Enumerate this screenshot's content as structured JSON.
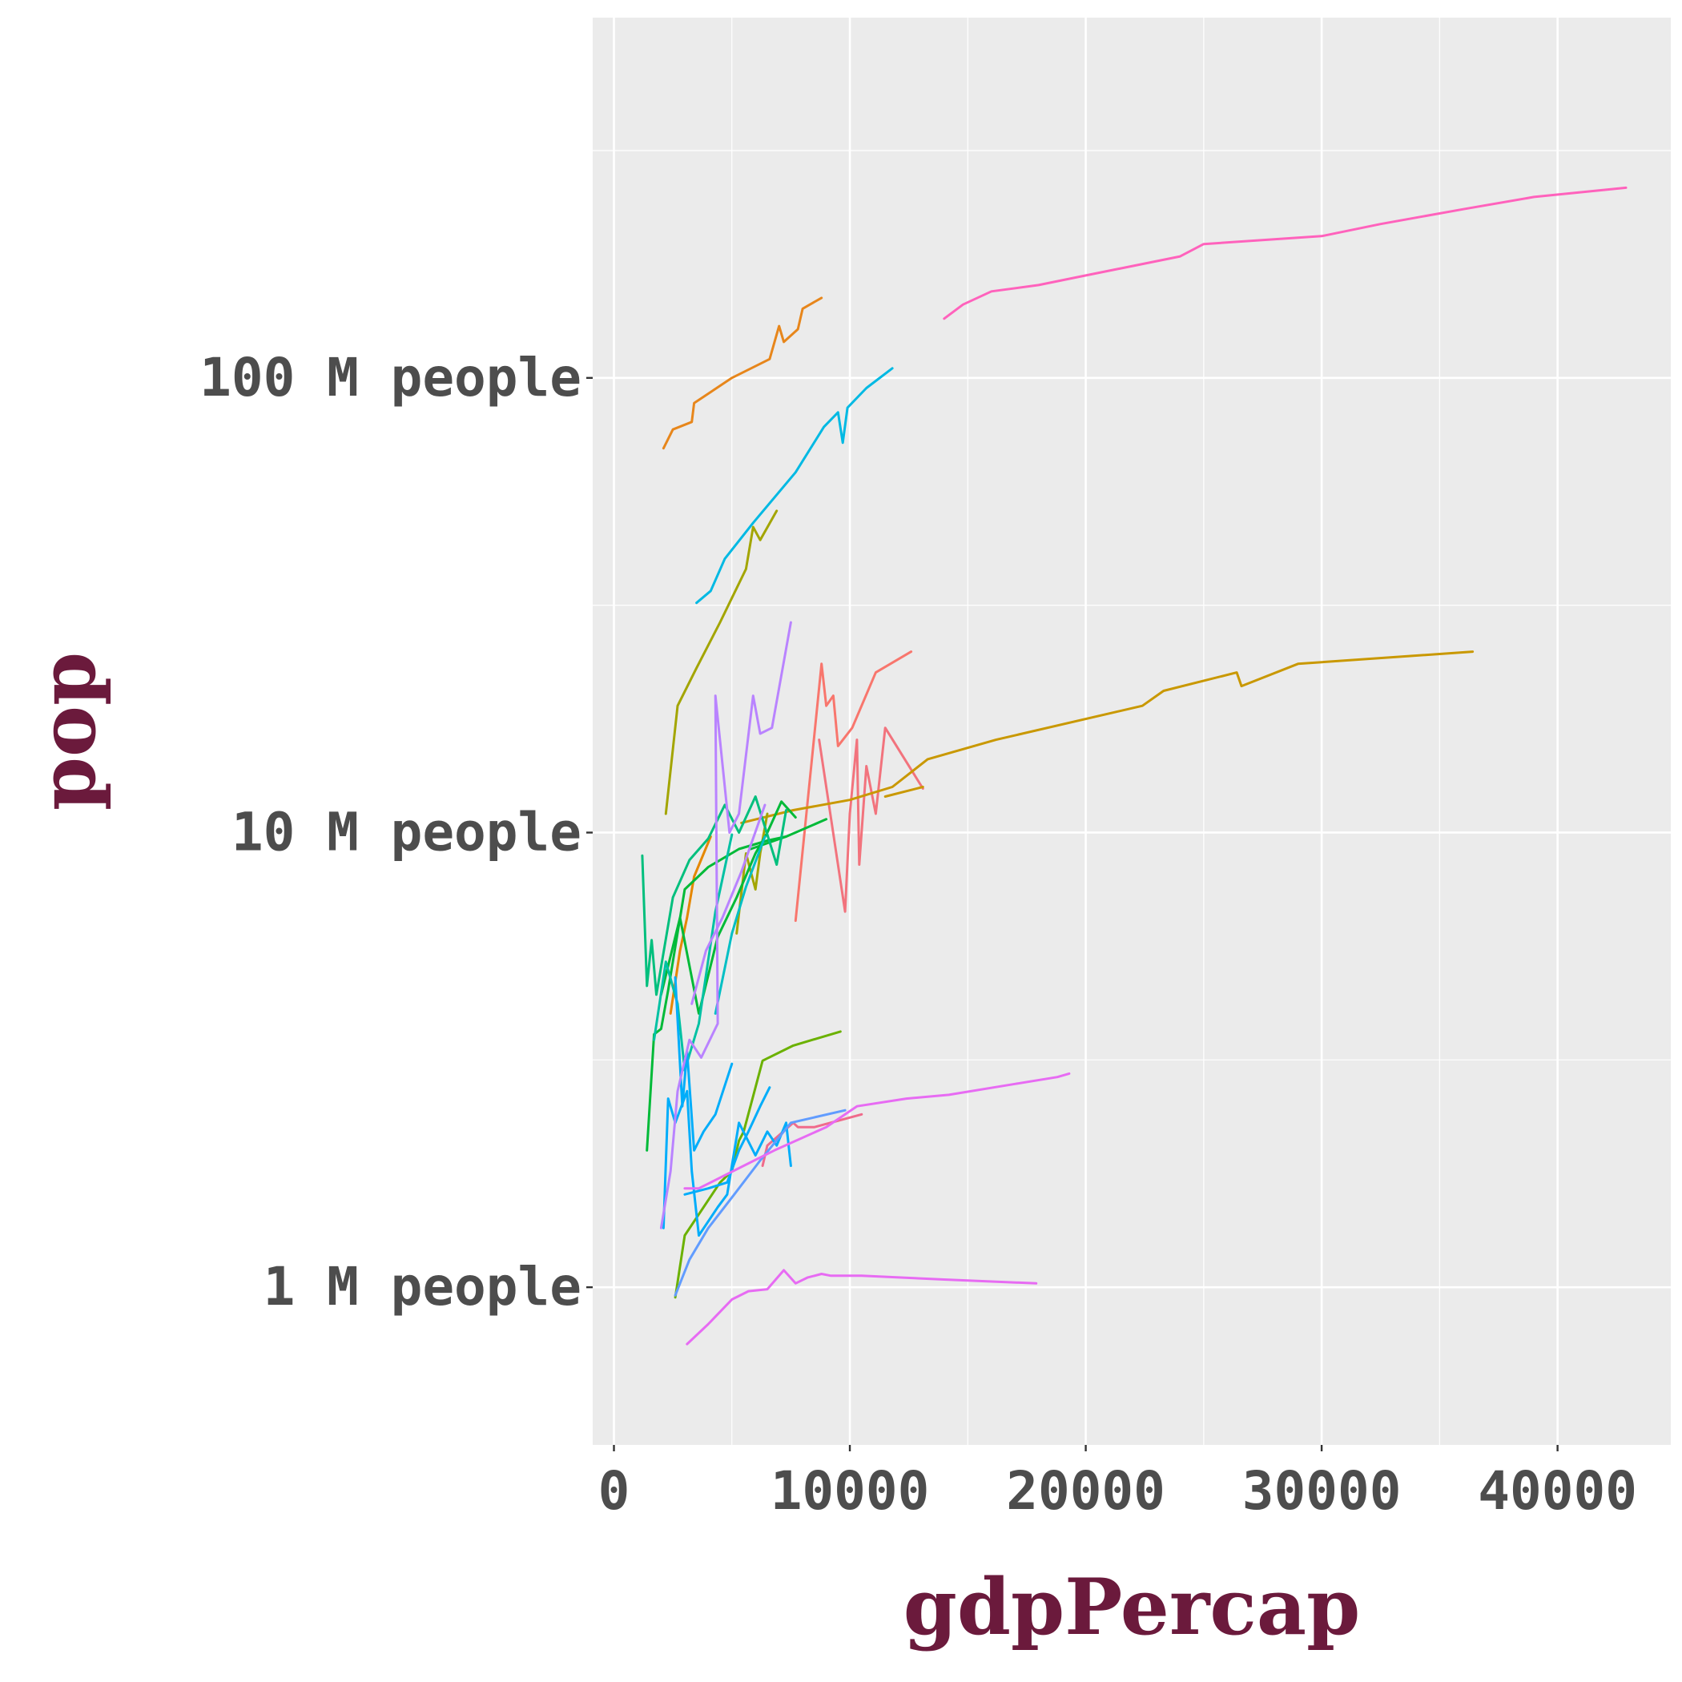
{
  "chart_data": {
    "type": "line",
    "xlabel": "gdpPercap",
    "ylabel": "pop",
    "x_scale": "linear",
    "y_scale": "log10",
    "xlim": [
      -900,
      44800
    ],
    "ylim": [
      450000,
      620000000
    ],
    "x_ticks": [
      {
        "value": 0,
        "label": "0"
      },
      {
        "value": 10000,
        "label": "10000"
      },
      {
        "value": 20000,
        "label": "20000"
      },
      {
        "value": 30000,
        "label": "30000"
      },
      {
        "value": 40000,
        "label": "40000"
      }
    ],
    "y_ticks": [
      {
        "value": 1000000,
        "label": "1 M people"
      },
      {
        "value": 10000000,
        "label": "10 M people"
      },
      {
        "value": 100000000,
        "label": "100 M people"
      }
    ],
    "grid": true,
    "legend": "none",
    "series": [
      {
        "color": "#F8766D",
        "points": [
          [
            7700,
            6400000
          ],
          [
            8800,
            23500000
          ],
          [
            9000,
            19000000
          ],
          [
            9300,
            20000000
          ],
          [
            9500,
            15500000
          ],
          [
            10100,
            17000000
          ],
          [
            11100,
            22500000
          ],
          [
            12600,
            25000000
          ]
        ]
      },
      {
        "color": "#F2737D",
        "points": [
          [
            8700,
            16000000
          ],
          [
            9800,
            6700000
          ],
          [
            10000,
            11000000
          ],
          [
            10300,
            16000000
          ],
          [
            10400,
            8500000
          ],
          [
            10700,
            14000000
          ],
          [
            11100,
            11000000
          ],
          [
            11500,
            17000000
          ],
          [
            13100,
            12500000
          ]
        ]
      },
      {
        "color": "#F06B8B",
        "points": [
          [
            6300,
            1850000
          ],
          [
            6500,
            2050000
          ],
          [
            7600,
            2300000
          ],
          [
            7800,
            2250000
          ],
          [
            8500,
            2250000
          ],
          [
            10500,
            2400000
          ]
        ]
      },
      {
        "color": "#E7861B",
        "points": [
          [
            2100,
            70000000
          ],
          [
            2500,
            77000000
          ],
          [
            3300,
            80000000
          ],
          [
            3400,
            88000000
          ],
          [
            5000,
            100000000
          ],
          [
            6600,
            110000000
          ],
          [
            7000,
            130000000
          ],
          [
            7200,
            120000000
          ],
          [
            7800,
            128000000
          ],
          [
            8000,
            142000000
          ],
          [
            8800,
            150000000
          ]
        ]
      },
      {
        "color": "#E58700",
        "points": [
          [
            2400,
            4000000
          ],
          [
            2800,
            5500000
          ],
          [
            3100,
            6500000
          ],
          [
            3400,
            8000000
          ],
          [
            4100,
            9800000
          ]
        ]
      },
      {
        "color": "#C99800",
        "points": [
          [
            5400,
            10500000
          ],
          [
            7600,
            11200000
          ],
          [
            10000,
            11800000
          ],
          [
            11800,
            12600000
          ],
          [
            13300,
            14500000
          ],
          [
            16200,
            16000000
          ],
          [
            22400,
            19000000
          ],
          [
            23300,
            20500000
          ],
          [
            26400,
            22500000
          ],
          [
            26600,
            21000000
          ],
          [
            29000,
            23500000
          ],
          [
            36400,
            25000000
          ]
        ]
      },
      {
        "color": "#C99800",
        "points": [
          [
            11500,
            12000000
          ],
          [
            13100,
            12600000
          ]
        ]
      },
      {
        "color": "#A3A500",
        "points": [
          [
            2200,
            11000000
          ],
          [
            2700,
            19000000
          ],
          [
            3500,
            23000000
          ],
          [
            4500,
            29000000
          ],
          [
            5600,
            38000000
          ],
          [
            5900,
            47000000
          ],
          [
            6200,
            44000000
          ],
          [
            6900,
            51000000
          ]
        ]
      },
      {
        "color": "#A3A500",
        "points": [
          [
            5200,
            6000000
          ],
          [
            5600,
            9000000
          ],
          [
            6000,
            7500000
          ],
          [
            6200,
            9000000
          ],
          [
            6500,
            11000000
          ]
        ]
      },
      {
        "color": "#6BB100",
        "points": [
          [
            2600,
            950000
          ],
          [
            3000,
            1300000
          ],
          [
            4500,
            1700000
          ],
          [
            5000,
            1800000
          ],
          [
            5300,
            2100000
          ],
          [
            5500,
            2200000
          ],
          [
            6000,
            2750000
          ],
          [
            6300,
            3150000
          ],
          [
            7600,
            3400000
          ],
          [
            9600,
            3650000
          ]
        ]
      },
      {
        "color": "#00BA38",
        "points": [
          [
            1400,
            2000000
          ],
          [
            1700,
            3600000
          ],
          [
            2000,
            3700000
          ],
          [
            2300,
            4500000
          ],
          [
            3000,
            7500000
          ],
          [
            4000,
            8400000
          ],
          [
            5300,
            9200000
          ],
          [
            6500,
            9600000
          ],
          [
            7300,
            9800000
          ]
        ]
      },
      {
        "color": "#00BA38",
        "points": [
          [
            5800,
            9200000
          ],
          [
            7300,
            9800000
          ],
          [
            9000,
            10700000
          ]
        ]
      },
      {
        "color": "#00BA38",
        "points": [
          [
            2000,
            4400000
          ],
          [
            2800,
            6500000
          ],
          [
            3600,
            4000000
          ],
          [
            4400,
            5900000
          ],
          [
            5200,
            7200000
          ],
          [
            6000,
            9000000
          ],
          [
            6500,
            10000000
          ],
          [
            7100,
            11700000
          ],
          [
            7700,
            10800000
          ]
        ]
      },
      {
        "color": "#00BF7D",
        "points": [
          [
            1200,
            8900000
          ],
          [
            1400,
            4600000
          ],
          [
            1600,
            5800000
          ],
          [
            1800,
            4400000
          ],
          [
            2500,
            7200000
          ],
          [
            3200,
            8700000
          ],
          [
            4000,
            9700000
          ],
          [
            4700,
            11500000
          ],
          [
            5300,
            10000000
          ],
          [
            6000,
            12000000
          ],
          [
            6900,
            8500000
          ],
          [
            7300,
            11200000
          ]
        ]
      },
      {
        "color": "#00C1A3",
        "points": [
          [
            1700,
            3500000
          ],
          [
            2200,
            5200000
          ],
          [
            2700,
            4200000
          ],
          [
            3000,
            3000000
          ],
          [
            3600,
            3800000
          ],
          [
            4300,
            6700000
          ],
          [
            5000,
            9900000
          ]
        ]
      },
      {
        "color": "#00BFC4",
        "points": [
          [
            4300,
            4000000
          ],
          [
            5000,
            6000000
          ],
          [
            5600,
            7600000
          ],
          [
            6400,
            9800000
          ]
        ]
      },
      {
        "color": "#00B9E3",
        "points": [
          [
            3500,
            32000000
          ],
          [
            4100,
            34000000
          ],
          [
            4700,
            40000000
          ],
          [
            5900,
            48000000
          ],
          [
            7700,
            62000000
          ],
          [
            8900,
            78000000
          ],
          [
            9500,
            84000000
          ],
          [
            9700,
            72000000
          ],
          [
            9900,
            86000000
          ],
          [
            10700,
            95000000
          ],
          [
            11800,
            105000000
          ]
        ]
      },
      {
        "color": "#00ADFA",
        "points": [
          [
            2100,
            1350000
          ],
          [
            2300,
            2600000
          ],
          [
            2600,
            2300000
          ],
          [
            3100,
            2700000
          ],
          [
            3300,
            1800000
          ],
          [
            3600,
            1300000
          ],
          [
            4400,
            1500000
          ],
          [
            4800,
            1600000
          ],
          [
            5300,
            2300000
          ],
          [
            6000,
            1950000
          ],
          [
            6500,
            2200000
          ],
          [
            6900,
            2050000
          ],
          [
            7300,
            2300000
          ],
          [
            7500,
            1850000
          ]
        ]
      },
      {
        "color": "#00ADFA",
        "points": [
          [
            2600,
            4800000
          ],
          [
            2900,
            2500000
          ],
          [
            3100,
            3300000
          ],
          [
            3400,
            2000000
          ],
          [
            3800,
            2200000
          ],
          [
            4300,
            2400000
          ],
          [
            5000,
            3100000
          ]
        ]
      },
      {
        "color": "#00ADFA",
        "points": [
          [
            3000,
            1600000
          ],
          [
            4000,
            1650000
          ],
          [
            4800,
            1700000
          ],
          [
            5300,
            2000000
          ],
          [
            5700,
            2200000
          ],
          [
            6200,
            2500000
          ],
          [
            6600,
            2750000
          ]
        ]
      },
      {
        "color": "#619CFF",
        "points": [
          [
            2600,
            960000
          ],
          [
            3200,
            1150000
          ],
          [
            4000,
            1350000
          ],
          [
            5100,
            1600000
          ],
          [
            6200,
            1900000
          ],
          [
            7500,
            2300000
          ],
          [
            9800,
            2450000
          ]
        ]
      },
      {
        "color": "#B983FF",
        "points": [
          [
            2000,
            1350000
          ],
          [
            2400,
            1800000
          ],
          [
            2700,
            2700000
          ],
          [
            3200,
            3500000
          ],
          [
            3700,
            3200000
          ],
          [
            4400,
            3800000
          ],
          [
            4300,
            20000000
          ],
          [
            4900,
            10000000
          ],
          [
            5300,
            11000000
          ],
          [
            5900,
            20000000
          ],
          [
            6200,
            16500000
          ],
          [
            6700,
            17000000
          ],
          [
            7500,
            29000000
          ]
        ]
      },
      {
        "color": "#B983FF",
        "points": [
          [
            3300,
            4200000
          ],
          [
            3900,
            5500000
          ],
          [
            4600,
            6500000
          ],
          [
            5400,
            8200000
          ],
          [
            6400,
            11500000
          ]
        ]
      },
      {
        "color": "#E76BF3",
        "points": [
          [
            3000,
            1650000
          ],
          [
            3600,
            1650000
          ],
          [
            5500,
            1850000
          ],
          [
            6800,
            2000000
          ],
          [
            9000,
            2250000
          ],
          [
            10300,
            2500000
          ],
          [
            12400,
            2600000
          ],
          [
            14200,
            2650000
          ],
          [
            17000,
            2800000
          ],
          [
            18800,
            2900000
          ],
          [
            19300,
            2950000
          ]
        ]
      },
      {
        "color": "#E76BF3",
        "points": [
          [
            3100,
            750000
          ],
          [
            4000,
            830000
          ],
          [
            5000,
            940000
          ],
          [
            5700,
            980000
          ],
          [
            6500,
            990000
          ],
          [
            7200,
            1090000
          ],
          [
            7700,
            1020000
          ],
          [
            8200,
            1050000
          ],
          [
            8800,
            1070000
          ],
          [
            9200,
            1060000
          ],
          [
            10500,
            1060000
          ],
          [
            14000,
            1040000
          ],
          [
            17900,
            1020000
          ]
        ]
      },
      {
        "color": "#FF62BC",
        "points": [
          [
            14000,
            135000000
          ],
          [
            14800,
            145000000
          ],
          [
            16000,
            155000000
          ],
          [
            18000,
            160000000
          ],
          [
            20000,
            168000000
          ],
          [
            24000,
            185000000
          ],
          [
            25000,
            197000000
          ],
          [
            30000,
            205000000
          ],
          [
            32500,
            218000000
          ],
          [
            36000,
            235000000
          ],
          [
            39000,
            250000000
          ],
          [
            42900,
            262000000
          ]
        ]
      }
    ]
  }
}
